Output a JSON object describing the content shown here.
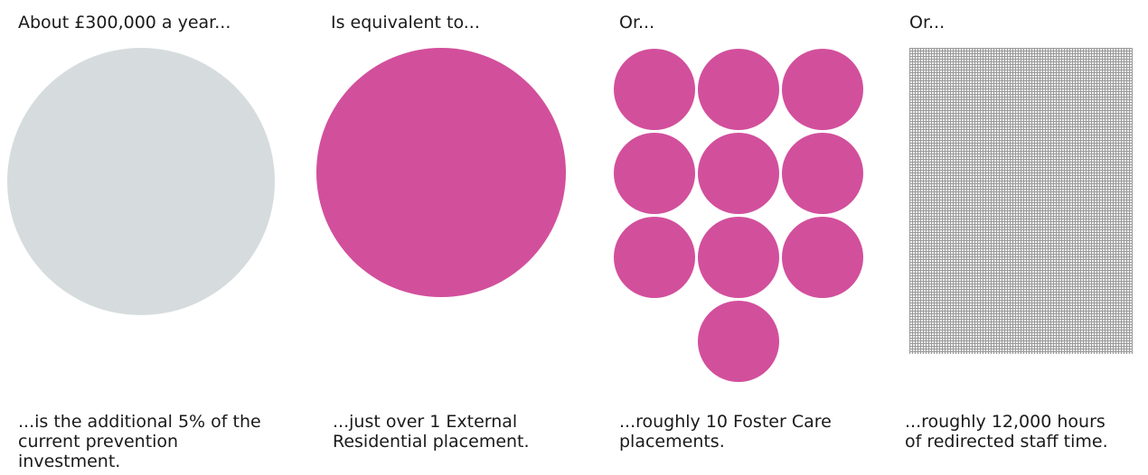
{
  "columns": [
    {
      "heading": "About £300,000 a year...",
      "caption": "...is the additional 5% of the\ncurrent prevention\ninvestment.",
      "graphic_color": "#d6dcdd"
    },
    {
      "heading": "Is equivalent to...",
      "caption": "...just over 1 External\nResidential placement.",
      "graphic_color": "#d24f9c"
    },
    {
      "heading": "Or...",
      "caption": "...roughly 10 Foster Care\nplacements.",
      "graphic_color": "#d24f9c"
    },
    {
      "heading": "Or...",
      "caption": "...roughly 12,000 hours\nof redirected staff time.",
      "graphic_color": "#9a9a9a"
    }
  ]
}
